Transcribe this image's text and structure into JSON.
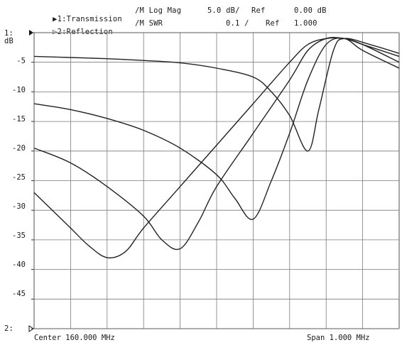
{
  "header": {
    "trace1": {
      "marker": "▶",
      "id": "1:Transmission",
      "format": "/M Log Mag",
      "scale": "5.0 dB/",
      "ref_label": "Ref",
      "ref_value": "0.00 dB"
    },
    "trace2": {
      "marker": "▷",
      "id": "2:Reflection",
      "format": "/M SWR",
      "scale": "0.1 /",
      "ref_label": "Ref",
      "ref_value": "1.000"
    }
  },
  "axis": {
    "marker_top": "1:",
    "marker_bottom": "2:",
    "unit": "dB",
    "y_ticks": [
      "-5",
      "-10",
      "-15",
      "-20",
      "-25",
      "-30",
      "-35",
      "-40",
      "-45"
    ]
  },
  "footer": {
    "center": "Center 160.000 MHz",
    "span": "Span 1.000 MHz"
  },
  "chart_data": {
    "type": "line",
    "xlabel": "",
    "ylabel": "dB",
    "x_unit": "MHz",
    "xlim": [
      159.5,
      160.5
    ],
    "ylim": [
      -50,
      0
    ],
    "grid": true,
    "x_divisions": 10,
    "series": [
      {
        "name": "",
        "points": [
          [
            159.5,
            -27
          ],
          [
            159.55,
            -30
          ],
          [
            159.6,
            -33
          ],
          [
            159.65,
            -36
          ],
          [
            159.7,
            -38
          ],
          [
            159.75,
            -37
          ],
          [
            159.8,
            -33
          ],
          [
            159.9,
            -26
          ],
          [
            160.0,
            -19
          ],
          [
            160.1,
            -12
          ],
          [
            160.2,
            -5
          ],
          [
            160.25,
            -2
          ],
          [
            160.3,
            -1
          ],
          [
            160.35,
            -1
          ],
          [
            160.4,
            -2
          ],
          [
            160.5,
            -4
          ]
        ]
      },
      {
        "name": "",
        "points": [
          [
            159.5,
            -19.5
          ],
          [
            159.6,
            -22
          ],
          [
            159.7,
            -26
          ],
          [
            159.8,
            -31
          ],
          [
            159.85,
            -35
          ],
          [
            159.9,
            -36.5
          ],
          [
            159.95,
            -32
          ],
          [
            160.0,
            -26
          ],
          [
            160.1,
            -17
          ],
          [
            160.2,
            -8
          ],
          [
            160.25,
            -3
          ],
          [
            160.3,
            -1
          ],
          [
            160.35,
            -1
          ],
          [
            160.4,
            -2
          ],
          [
            160.5,
            -5
          ]
        ]
      },
      {
        "name": "",
        "points": [
          [
            159.5,
            -12
          ],
          [
            159.6,
            -13
          ],
          [
            159.7,
            -14.5
          ],
          [
            159.8,
            -16.5
          ],
          [
            159.9,
            -19.5
          ],
          [
            160.0,
            -24
          ],
          [
            160.05,
            -28
          ],
          [
            160.1,
            -31.5
          ],
          [
            160.15,
            -25
          ],
          [
            160.2,
            -17
          ],
          [
            160.25,
            -8
          ],
          [
            160.3,
            -2
          ],
          [
            160.35,
            -1
          ],
          [
            160.4,
            -3
          ],
          [
            160.5,
            -6
          ]
        ]
      },
      {
        "name": "",
        "points": [
          [
            159.5,
            -4
          ],
          [
            159.6,
            -4.2
          ],
          [
            159.7,
            -4.4
          ],
          [
            159.8,
            -4.7
          ],
          [
            159.9,
            -5.1
          ],
          [
            160.0,
            -6
          ],
          [
            160.1,
            -7.5
          ],
          [
            160.15,
            -10
          ],
          [
            160.2,
            -14
          ],
          [
            160.25,
            -20
          ],
          [
            160.28,
            -13
          ],
          [
            160.32,
            -3
          ],
          [
            160.35,
            -1
          ],
          [
            160.42,
            -2
          ],
          [
            160.5,
            -3.5
          ]
        ]
      }
    ]
  }
}
